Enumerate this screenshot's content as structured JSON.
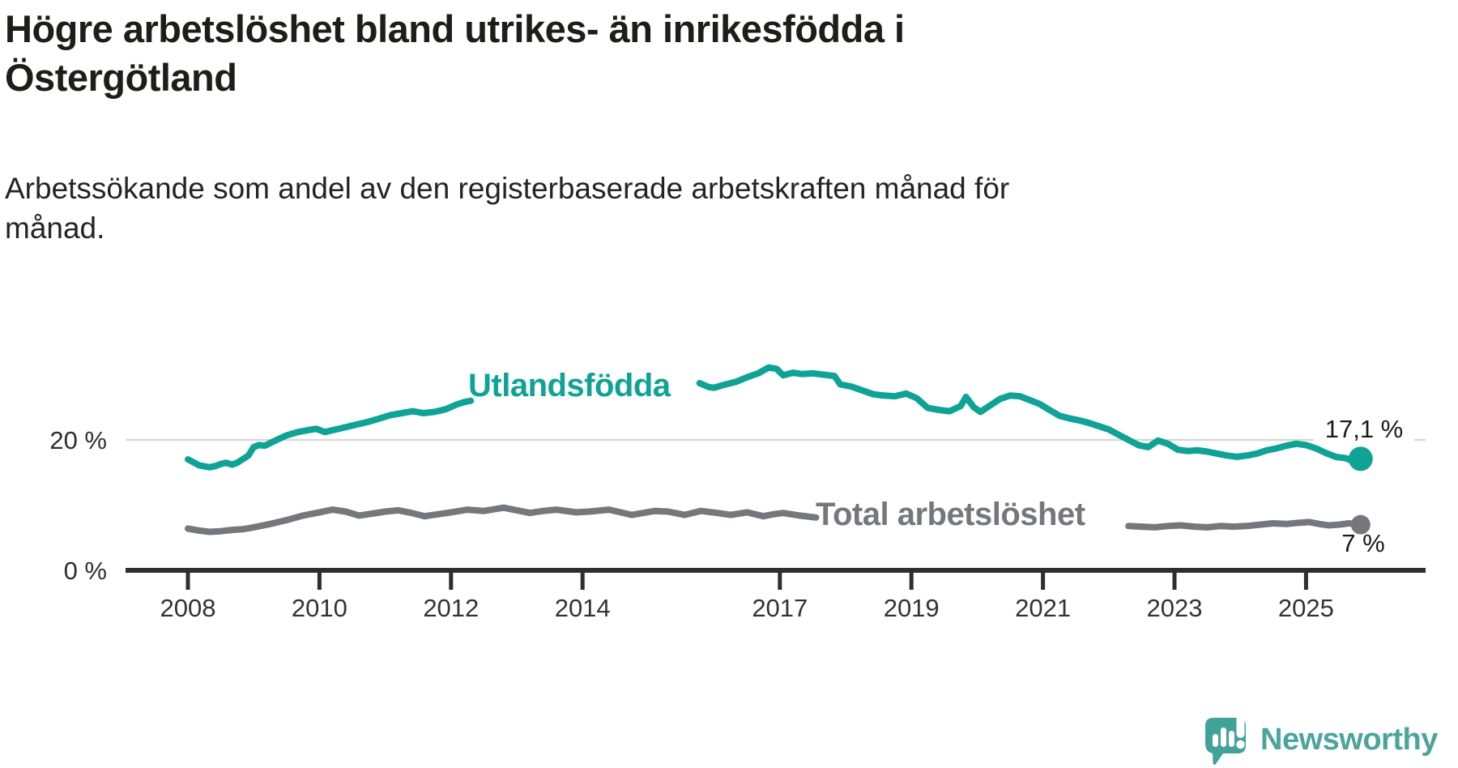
{
  "title": {
    "line1": "Högre arbetslöshet bland utrikes- än inrikesfödda i",
    "line2": "Östergötland"
  },
  "subtitle": {
    "line1": "Arbetssökande som andel av den registerbaserade arbetskraften månad för",
    "line2": "månad."
  },
  "colors": {
    "background": "#ffffff",
    "title_text": "#1d1d1b",
    "subtitle_text": "#242424",
    "axis": "#2e2e2e",
    "tick_label": "#333333",
    "gridline": "#d9d9d9",
    "value_label": "#1b1b1b",
    "series_foreign_born": "#0fa396",
    "series_total": "#76777c",
    "logo_teal": "#4ba59d",
    "logo_bubble": "#41a29a"
  },
  "chart_data": {
    "type": "line",
    "title": "Högre arbetslöshet bland utrikes- än inrikesfödda i Östergötland",
    "subtitle": "Arbetssökande som andel av den registerbaserade arbetskraften månad för månad.",
    "xlabel": "",
    "ylabel": "",
    "x_axis": {
      "ticks": [
        2008,
        2010,
        2012,
        2014,
        2017,
        2019,
        2021,
        2023,
        2025
      ],
      "range": [
        2007.05,
        2026.8
      ]
    },
    "y_axis": {
      "ticks": [
        {
          "value": 0,
          "label": "0 %"
        },
        {
          "value": 20,
          "label": "20 %"
        }
      ],
      "gridlines": [
        20
      ],
      "range": [
        0,
        40
      ]
    },
    "legend_position": "inline-labels",
    "series": [
      {
        "name": "Utlandsfödda",
        "color": "#0fa396",
        "end_label": "17,1 %",
        "end_value": 17.1,
        "segments": [
          [
            [
              2008.0,
              17.0
            ],
            [
              2008.08,
              16.6
            ],
            [
              2008.17,
              16.1
            ],
            [
              2008.33,
              15.8
            ],
            [
              2008.42,
              16.0
            ],
            [
              2008.5,
              16.3
            ],
            [
              2008.58,
              16.5
            ],
            [
              2008.67,
              16.2
            ],
            [
              2008.75,
              16.5
            ],
            [
              2008.92,
              17.6
            ],
            [
              2009.0,
              18.9
            ],
            [
              2009.08,
              19.2
            ],
            [
              2009.17,
              19.1
            ],
            [
              2009.33,
              19.9
            ],
            [
              2009.5,
              20.7
            ],
            [
              2009.67,
              21.2
            ],
            [
              2009.83,
              21.5
            ],
            [
              2009.95,
              21.7
            ],
            [
              2010.08,
              21.2
            ],
            [
              2010.25,
              21.6
            ],
            [
              2010.42,
              22.0
            ],
            [
              2010.58,
              22.4
            ],
            [
              2010.75,
              22.8
            ],
            [
              2010.92,
              23.3
            ],
            [
              2011.08,
              23.8
            ],
            [
              2011.25,
              24.1
            ],
            [
              2011.42,
              24.4
            ],
            [
              2011.58,
              24.1
            ],
            [
              2011.75,
              24.3
            ],
            [
              2011.92,
              24.7
            ],
            [
              2012.08,
              25.4
            ],
            [
              2012.2,
              25.8
            ],
            [
              2012.3,
              26.0
            ]
          ],
          [
            [
              2015.78,
              28.7
            ],
            [
              2015.92,
              28.1
            ],
            [
              2016.0,
              28.0
            ],
            [
              2016.17,
              28.5
            ],
            [
              2016.33,
              28.9
            ],
            [
              2016.5,
              29.6
            ],
            [
              2016.67,
              30.2
            ],
            [
              2016.83,
              31.1
            ],
            [
              2016.95,
              30.9
            ],
            [
              2017.05,
              29.9
            ],
            [
              2017.2,
              30.3
            ],
            [
              2017.33,
              30.1
            ],
            [
              2017.5,
              30.2
            ],
            [
              2017.67,
              30.0
            ],
            [
              2017.83,
              29.8
            ],
            [
              2017.92,
              28.5
            ],
            [
              2018.08,
              28.2
            ],
            [
              2018.25,
              27.6
            ],
            [
              2018.42,
              27.0
            ],
            [
              2018.58,
              26.8
            ],
            [
              2018.75,
              26.7
            ],
            [
              2018.92,
              27.1
            ],
            [
              2019.08,
              26.4
            ],
            [
              2019.25,
              24.9
            ],
            [
              2019.42,
              24.6
            ],
            [
              2019.58,
              24.4
            ],
            [
              2019.75,
              25.2
            ],
            [
              2019.83,
              26.6
            ],
            [
              2019.95,
              25.0
            ],
            [
              2020.05,
              24.3
            ],
            [
              2020.2,
              25.3
            ],
            [
              2020.35,
              26.3
            ],
            [
              2020.5,
              26.8
            ],
            [
              2020.65,
              26.7
            ],
            [
              2020.8,
              26.1
            ],
            [
              2020.95,
              25.5
            ],
            [
              2021.1,
              24.6
            ],
            [
              2021.25,
              23.7
            ],
            [
              2021.4,
              23.3
            ],
            [
              2021.55,
              23.0
            ],
            [
              2021.7,
              22.6
            ],
            [
              2021.85,
              22.1
            ],
            [
              2022.0,
              21.6
            ],
            [
              2022.15,
              20.8
            ],
            [
              2022.3,
              20.0
            ],
            [
              2022.45,
              19.2
            ],
            [
              2022.6,
              18.9
            ],
            [
              2022.75,
              19.9
            ],
            [
              2022.9,
              19.4
            ],
            [
              2023.05,
              18.5
            ],
            [
              2023.2,
              18.3
            ],
            [
              2023.35,
              18.4
            ],
            [
              2023.5,
              18.2
            ],
            [
              2023.65,
              17.9
            ],
            [
              2023.8,
              17.6
            ],
            [
              2023.95,
              17.4
            ],
            [
              2024.1,
              17.6
            ],
            [
              2024.25,
              17.9
            ],
            [
              2024.4,
              18.4
            ],
            [
              2024.55,
              18.7
            ],
            [
              2024.7,
              19.1
            ],
            [
              2024.85,
              19.4
            ],
            [
              2025.0,
              19.2
            ],
            [
              2025.15,
              18.7
            ],
            [
              2025.3,
              18.0
            ],
            [
              2025.45,
              17.4
            ],
            [
              2025.6,
              17.2
            ],
            [
              2025.7,
              16.8
            ],
            [
              2025.83,
              17.1
            ]
          ]
        ]
      },
      {
        "name": "Total arbetslöshet",
        "color": "#76777c",
        "end_label": "7 %",
        "end_value": 7,
        "segments": [
          [
            [
              2008.0,
              6.4
            ],
            [
              2008.17,
              6.1
            ],
            [
              2008.33,
              5.9
            ],
            [
              2008.5,
              6.0
            ],
            [
              2008.67,
              6.2
            ],
            [
              2008.83,
              6.3
            ],
            [
              2009.0,
              6.6
            ],
            [
              2009.25,
              7.1
            ],
            [
              2009.5,
              7.7
            ],
            [
              2009.75,
              8.4
            ],
            [
              2010.0,
              8.9
            ],
            [
              2010.2,
              9.3
            ],
            [
              2010.4,
              9.0
            ],
            [
              2010.6,
              8.4
            ],
            [
              2010.8,
              8.7
            ],
            [
              2011.0,
              9.0
            ],
            [
              2011.2,
              9.2
            ],
            [
              2011.4,
              8.8
            ],
            [
              2011.6,
              8.3
            ],
            [
              2011.8,
              8.6
            ],
            [
              2012.0,
              8.9
            ],
            [
              2012.25,
              9.3
            ],
            [
              2012.5,
              9.1
            ],
            [
              2012.8,
              9.6
            ],
            [
              2013.0,
              9.2
            ],
            [
              2013.2,
              8.8
            ],
            [
              2013.4,
              9.1
            ],
            [
              2013.6,
              9.3
            ],
            [
              2013.9,
              8.9
            ],
            [
              2014.1,
              9.0
            ],
            [
              2014.4,
              9.3
            ],
            [
              2014.75,
              8.5
            ],
            [
              2015.1,
              9.1
            ],
            [
              2015.3,
              9.0
            ],
            [
              2015.55,
              8.5
            ],
            [
              2015.8,
              9.1
            ],
            [
              2016.05,
              8.8
            ],
            [
              2016.25,
              8.5
            ],
            [
              2016.5,
              8.9
            ],
            [
              2016.75,
              8.3
            ],
            [
              2016.9,
              8.6
            ],
            [
              2017.05,
              8.8
            ],
            [
              2017.3,
              8.4
            ],
            [
              2017.55,
              8.1
            ]
          ],
          [
            [
              2022.3,
              6.8
            ],
            [
              2022.5,
              6.7
            ],
            [
              2022.7,
              6.6
            ],
            [
              2022.9,
              6.8
            ],
            [
              2023.1,
              6.9
            ],
            [
              2023.3,
              6.7
            ],
            [
              2023.5,
              6.6
            ],
            [
              2023.7,
              6.8
            ],
            [
              2023.9,
              6.7
            ],
            [
              2024.1,
              6.8
            ],
            [
              2024.3,
              7.0
            ],
            [
              2024.5,
              7.2
            ],
            [
              2024.7,
              7.1
            ],
            [
              2024.9,
              7.3
            ],
            [
              2025.05,
              7.4
            ],
            [
              2025.2,
              7.1
            ],
            [
              2025.35,
              6.9
            ],
            [
              2025.5,
              7.0
            ],
            [
              2025.65,
              7.2
            ],
            [
              2025.83,
              7.0
            ]
          ]
        ]
      }
    ]
  },
  "footer": {
    "logo_text": "Newsworthy"
  }
}
